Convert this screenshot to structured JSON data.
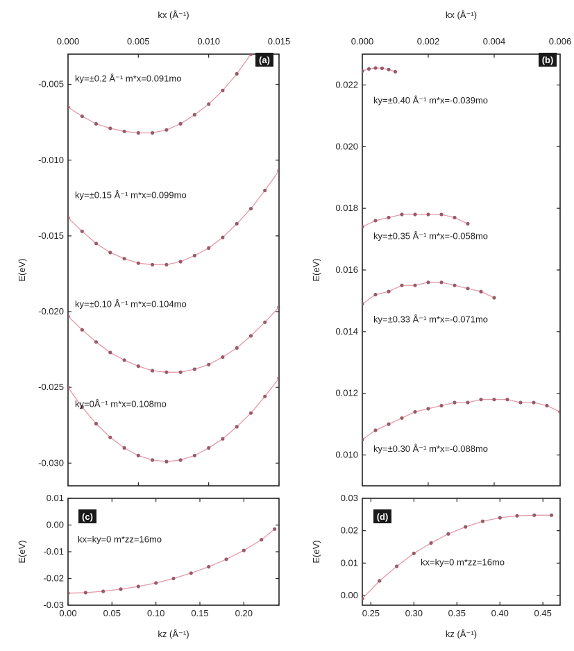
{
  "chart_data": [
    {
      "panel": "a",
      "type": "scatter",
      "x_axis": {
        "label": "kx (Å⁻¹)",
        "position": "top",
        "lim": [
          0,
          0.015
        ],
        "ticks": [
          "0.000",
          "0.005",
          "0.010",
          "0.015"
        ],
        "tick_values": [
          0,
          0.005,
          0.01,
          0.015
        ]
      },
      "y_axis": {
        "label": "E(eV)",
        "lim": [
          -0.0315,
          -0.003
        ],
        "ticks": [
          "-0.005",
          "-0.010",
          "-0.015",
          "-0.020",
          "-0.025",
          "-0.030"
        ],
        "tick_values": [
          -0.005,
          -0.01,
          -0.015,
          -0.02,
          -0.025,
          -0.03
        ]
      },
      "series": [
        {
          "name": "ky=±0.2 Å⁻¹ m*x=0.091mo",
          "label_y": -0.0048,
          "x": [
            0.0,
            0.001,
            0.002,
            0.003,
            0.004,
            0.005,
            0.006,
            0.007,
            0.008,
            0.009,
            0.01,
            0.011,
            0.012,
            0.013
          ],
          "y": [
            -0.0065,
            -0.0071,
            -0.0076,
            -0.0079,
            -0.0081,
            -0.0082,
            -0.0082,
            -0.008,
            -0.0076,
            -0.007,
            -0.0063,
            -0.0054,
            -0.0043,
            -0.003
          ]
        },
        {
          "name": "ky=±0.15 Å⁻¹ m*x=0.099mo",
          "label_y": -0.0125,
          "x": [
            0.0,
            0.001,
            0.002,
            0.003,
            0.004,
            0.005,
            0.006,
            0.007,
            0.008,
            0.009,
            0.01,
            0.011,
            0.012,
            0.013,
            0.014,
            0.015
          ],
          "y": [
            -0.0138,
            -0.0147,
            -0.0155,
            -0.0161,
            -0.0165,
            -0.0168,
            -0.0169,
            -0.0169,
            -0.0167,
            -0.0163,
            -0.0158,
            -0.0151,
            -0.0142,
            -0.0132,
            -0.012,
            -0.0107
          ]
        },
        {
          "name": "ky=±0.10 Å⁻¹ m*x=0.104mo",
          "label_y": -0.0197,
          "x": [
            0.0,
            0.001,
            0.002,
            0.003,
            0.004,
            0.005,
            0.006,
            0.007,
            0.008,
            0.009,
            0.01,
            0.011,
            0.012,
            0.013,
            0.014,
            0.015
          ],
          "y": [
            -0.0203,
            -0.0212,
            -0.022,
            -0.0227,
            -0.0232,
            -0.0236,
            -0.0239,
            -0.024,
            -0.024,
            -0.0238,
            -0.0235,
            -0.023,
            -0.0224,
            -0.0216,
            -0.0207,
            -0.0197
          ]
        },
        {
          "name": "ky=0Å⁻¹ m*x=0.108mo",
          "label_y": -0.0263,
          "x": [
            0.0,
            0.001,
            0.002,
            0.003,
            0.004,
            0.005,
            0.006,
            0.007,
            0.008,
            0.009,
            0.01,
            0.011,
            0.012,
            0.013,
            0.014,
            0.015
          ],
          "y": [
            -0.025,
            -0.0263,
            -0.0274,
            -0.0283,
            -0.029,
            -0.0295,
            -0.0298,
            -0.0299,
            -0.0298,
            -0.0295,
            -0.029,
            -0.0284,
            -0.0276,
            -0.0267,
            -0.0256,
            -0.0244
          ]
        }
      ]
    },
    {
      "panel": "b",
      "type": "scatter",
      "x_axis": {
        "label": "kx (Å⁻¹)",
        "position": "top",
        "lim": [
          0,
          0.006
        ],
        "ticks": [
          "0.000",
          "0.002",
          "0.004",
          "0.006"
        ],
        "tick_values": [
          0,
          0.002,
          0.004,
          0.006
        ]
      },
      "y_axis": {
        "label": "E(eV)",
        "lim": [
          0.009,
          0.023
        ],
        "ticks": [
          "0.022",
          "0.020",
          "0.018",
          "0.016",
          "0.014",
          "0.012",
          "0.010"
        ],
        "tick_values": [
          0.022,
          0.02,
          0.018,
          0.016,
          0.014,
          0.012,
          0.01
        ]
      },
      "series": [
        {
          "name": "ky=±0.40 Å⁻¹ m*x=-0.039mo",
          "label_y": 0.0214,
          "x": [
            0.0,
            0.0002,
            0.0004,
            0.0006,
            0.0008,
            0.001
          ],
          "y": [
            0.02245,
            0.02252,
            0.02255,
            0.02254,
            0.0225,
            0.02243
          ]
        },
        {
          "name": "ky=±0.35 Å⁻¹ m*x=-0.058mo",
          "label_y": 0.017,
          "x": [
            0.0,
            0.0004,
            0.0008,
            0.0012,
            0.0016,
            0.002,
            0.0024,
            0.0028,
            0.0032
          ],
          "y": [
            0.0174,
            0.0176,
            0.0177,
            0.0178,
            0.0178,
            0.0178,
            0.0178,
            0.0177,
            0.0175
          ]
        },
        {
          "name": "ky=±0.33 Å⁻¹ m*x=-0.071mo",
          "label_y": 0.0143,
          "x": [
            0.0,
            0.0004,
            0.0008,
            0.0012,
            0.0016,
            0.002,
            0.0024,
            0.0028,
            0.0032,
            0.0036,
            0.004
          ],
          "y": [
            0.0149,
            0.0152,
            0.0153,
            0.0155,
            0.0155,
            0.0156,
            0.0156,
            0.0155,
            0.0154,
            0.0153,
            0.0151
          ]
        },
        {
          "name": "ky=±0.30 Å⁻¹ m*x=-0.088mo",
          "label_y": 0.0101,
          "x": [
            0.0,
            0.0004,
            0.0008,
            0.0012,
            0.0016,
            0.002,
            0.0024,
            0.0028,
            0.0032,
            0.0036,
            0.004,
            0.0044,
            0.0048,
            0.0052,
            0.0056,
            0.006
          ],
          "y": [
            0.0105,
            0.0108,
            0.011,
            0.0112,
            0.0114,
            0.0115,
            0.0116,
            0.0117,
            0.0117,
            0.0118,
            0.0118,
            0.0118,
            0.0117,
            0.0117,
            0.0116,
            0.0114
          ]
        }
      ]
    },
    {
      "panel": "c",
      "type": "scatter",
      "x_axis": {
        "label": "kz (Å⁻¹)",
        "position": "bottom",
        "lim": [
          0,
          0.24
        ],
        "ticks": [
          "0.00",
          "0.05",
          "0.10",
          "0.15",
          "0.20"
        ],
        "tick_values": [
          0,
          0.05,
          0.1,
          0.15,
          0.2
        ]
      },
      "y_axis": {
        "label": "E(eV)",
        "lim": [
          -0.03,
          0.01
        ],
        "ticks": [
          "0.01",
          "0.00",
          "-0.01",
          "-0.02",
          "-0.03"
        ],
        "tick_values": [
          0.01,
          0.0,
          -0.01,
          -0.02,
          -0.03
        ]
      },
      "series": [
        {
          "name": "kx=ky=0  m*zz=16mo",
          "label_y": -0.0065,
          "x": [
            0.0,
            0.02,
            0.04,
            0.06,
            0.08,
            0.1,
            0.12,
            0.14,
            0.16,
            0.18,
            0.2,
            0.22,
            0.235
          ],
          "y": [
            -0.0255,
            -0.0253,
            -0.0248,
            -0.024,
            -0.023,
            -0.0217,
            -0.02,
            -0.018,
            -0.0156,
            -0.0128,
            -0.0095,
            -0.0055,
            -0.0015
          ]
        }
      ]
    },
    {
      "panel": "d",
      "type": "scatter",
      "x_axis": {
        "label": "kz (Å⁻¹)",
        "position": "bottom",
        "lim": [
          0.24,
          0.47
        ],
        "ticks": [
          "0.25",
          "0.30",
          "0.35",
          "0.40",
          "0.45"
        ],
        "tick_values": [
          0.25,
          0.3,
          0.35,
          0.4,
          0.45
        ]
      },
      "y_axis": {
        "label": "E(eV)",
        "lim": [
          -0.003,
          0.03
        ],
        "ticks": [
          "0.03",
          "0.02",
          "0.01",
          "0.00"
        ],
        "tick_values": [
          0.03,
          0.02,
          0.01,
          0.0
        ]
      },
      "series": [
        {
          "name": "kx=ky=0  m*zz=16mo",
          "label_y": 0.0093,
          "x": [
            0.24,
            0.26,
            0.28,
            0.3,
            0.32,
            0.34,
            0.36,
            0.38,
            0.4,
            0.42,
            0.44,
            0.46
          ],
          "y": [
            -0.001,
            0.0045,
            0.009,
            0.013,
            0.0162,
            0.019,
            0.0212,
            0.0229,
            0.024,
            0.0246,
            0.0248,
            0.0248
          ]
        }
      ]
    }
  ],
  "badges": {
    "a": "(a)",
    "b": "(b)",
    "c": "(c)",
    "d": "(d)"
  }
}
